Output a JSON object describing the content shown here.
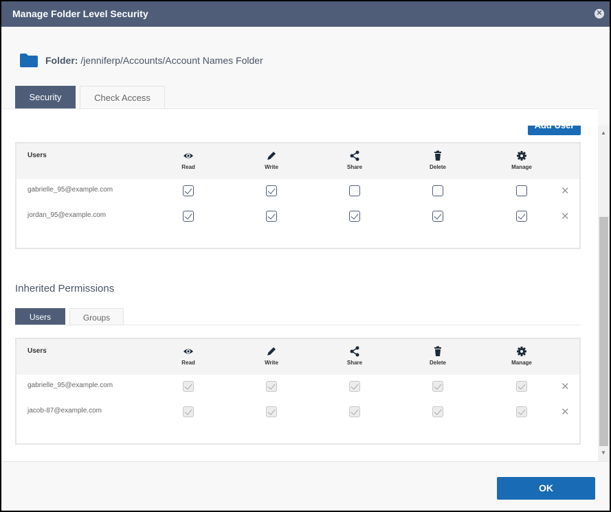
{
  "dialog": {
    "title": "Manage Folder Level Security",
    "close_icon": "close-circle-icon"
  },
  "folder": {
    "label": "Folder:",
    "path": "/jenniferp/Accounts/Account Names Folder",
    "icon": "folder-icon",
    "color": "#1a6bb5"
  },
  "tabs": [
    {
      "label": "Security",
      "active": true
    },
    {
      "label": "Check Access",
      "active": false
    }
  ],
  "security": {
    "add_user_label": "Add User",
    "headers": {
      "users": "Users",
      "read": "Read",
      "write": "Write",
      "share": "Share",
      "delete": "Delete",
      "manage": "Manage"
    },
    "rows": [
      {
        "email": "gabrielle_95@example.com",
        "read": true,
        "write": true,
        "share": false,
        "delete": false,
        "manage": false
      },
      {
        "email": "jordan_95@example.com",
        "read": true,
        "write": true,
        "share": true,
        "delete": true,
        "manage": true
      }
    ]
  },
  "inherited": {
    "title": "Inherited Permissions",
    "tabs": [
      {
        "label": "Users",
        "active": true
      },
      {
        "label": "Groups",
        "active": false
      }
    ],
    "headers": {
      "users": "Users",
      "read": "Read",
      "write": "Write",
      "share": "Share",
      "delete": "Delete",
      "manage": "Manage"
    },
    "rows": [
      {
        "email": "gabrielle_95@example.com",
        "read": true,
        "write": true,
        "share": true,
        "delete": true,
        "manage": true
      },
      {
        "email": "jacob-87@example.com",
        "read": true,
        "write": true,
        "share": true,
        "delete": true,
        "manage": true
      }
    ]
  },
  "footer": {
    "ok_label": "OK"
  },
  "colors": {
    "titlebar": "#4f5d78",
    "primary": "#1a6bb5"
  }
}
